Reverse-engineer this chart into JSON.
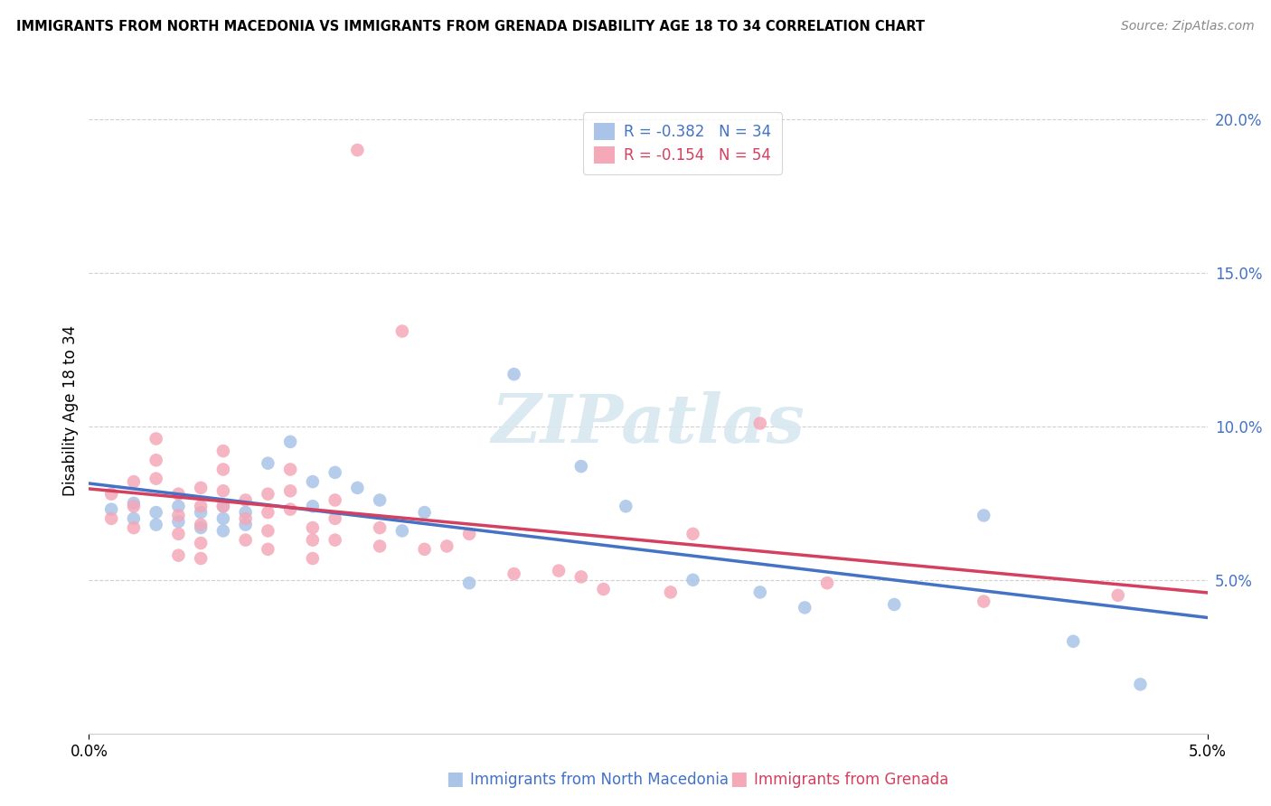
{
  "title": "IMMIGRANTS FROM NORTH MACEDONIA VS IMMIGRANTS FROM GRENADA DISABILITY AGE 18 TO 34 CORRELATION CHART",
  "source": "Source: ZipAtlas.com",
  "xlabel_blue": "Immigrants from North Macedonia",
  "xlabel_pink": "Immigrants from Grenada",
  "ylabel": "Disability Age 18 to 34",
  "watermark": "ZIPatlas",
  "legend_blue_R": "-0.382",
  "legend_blue_N": "34",
  "legend_pink_R": "-0.154",
  "legend_pink_N": "54",
  "blue_scatter_color": "#aac4e8",
  "pink_scatter_color": "#f4a8b8",
  "line_blue_color": "#4472c4",
  "line_pink_color": "#d44060",
  "xmin": 0.0,
  "xmax": 0.05,
  "ymin": 0.0,
  "ymax": 0.21,
  "yticks": [
    0.05,
    0.1,
    0.15,
    0.2
  ],
  "ytick_labels": [
    "5.0%",
    "10.0%",
    "15.0%",
    "20.0%"
  ],
  "xticks": [
    0.0,
    0.05
  ],
  "xtick_labels": [
    "0.0%",
    "5.0%"
  ],
  "blue_x": [
    0.001,
    0.002,
    0.002,
    0.003,
    0.003,
    0.004,
    0.004,
    0.005,
    0.005,
    0.006,
    0.006,
    0.006,
    0.007,
    0.007,
    0.008,
    0.009,
    0.01,
    0.01,
    0.011,
    0.012,
    0.013,
    0.014,
    0.015,
    0.017,
    0.019,
    0.022,
    0.024,
    0.027,
    0.03,
    0.032,
    0.036,
    0.04,
    0.044,
    0.047
  ],
  "blue_y": [
    0.073,
    0.075,
    0.07,
    0.072,
    0.068,
    0.074,
    0.069,
    0.072,
    0.067,
    0.074,
    0.07,
    0.066,
    0.072,
    0.068,
    0.088,
    0.095,
    0.082,
    0.074,
    0.085,
    0.08,
    0.076,
    0.066,
    0.072,
    0.049,
    0.117,
    0.087,
    0.074,
    0.05,
    0.046,
    0.041,
    0.042,
    0.071,
    0.03,
    0.016
  ],
  "pink_x": [
    0.001,
    0.001,
    0.002,
    0.002,
    0.002,
    0.003,
    0.003,
    0.003,
    0.004,
    0.004,
    0.004,
    0.004,
    0.005,
    0.005,
    0.005,
    0.005,
    0.005,
    0.006,
    0.006,
    0.006,
    0.006,
    0.007,
    0.007,
    0.007,
    0.008,
    0.008,
    0.008,
    0.008,
    0.009,
    0.009,
    0.009,
    0.01,
    0.01,
    0.01,
    0.011,
    0.011,
    0.011,
    0.012,
    0.013,
    0.013,
    0.014,
    0.015,
    0.016,
    0.017,
    0.019,
    0.021,
    0.022,
    0.023,
    0.026,
    0.027,
    0.03,
    0.033,
    0.04,
    0.046
  ],
  "pink_y": [
    0.078,
    0.07,
    0.082,
    0.074,
    0.067,
    0.096,
    0.089,
    0.083,
    0.078,
    0.071,
    0.065,
    0.058,
    0.08,
    0.074,
    0.068,
    0.062,
    0.057,
    0.092,
    0.086,
    0.079,
    0.074,
    0.076,
    0.07,
    0.063,
    0.078,
    0.072,
    0.066,
    0.06,
    0.086,
    0.079,
    0.073,
    0.067,
    0.063,
    0.057,
    0.076,
    0.07,
    0.063,
    0.19,
    0.067,
    0.061,
    0.131,
    0.06,
    0.061,
    0.065,
    0.052,
    0.053,
    0.051,
    0.047,
    0.046,
    0.065,
    0.101,
    0.049,
    0.043,
    0.045
  ]
}
